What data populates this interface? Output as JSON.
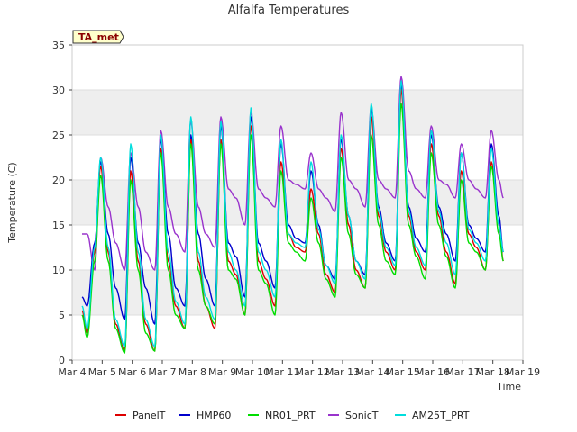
{
  "chart_data": {
    "type": "line",
    "title": "Alfalfa Temperatures",
    "xlabel": "Time",
    "ylabel": "Temperature (C)",
    "badge": "TA_met",
    "x_unit": "day of March",
    "xlim": [
      4,
      19
    ],
    "ylim": [
      0,
      35
    ],
    "x_ticks": [
      4,
      5,
      6,
      7,
      8,
      9,
      10,
      11,
      12,
      13,
      14,
      15,
      16,
      17,
      18,
      19
    ],
    "x_tick_labels": [
      "Mar 4",
      "Mar 5",
      "Mar 6",
      "Mar 7",
      "Mar 8",
      "Mar 9",
      "Mar 10",
      "Mar 11",
      "Mar 12",
      "Mar 13",
      "Mar 14",
      "Mar 15",
      "Mar 16",
      "Mar 17",
      "Mar 18",
      "Mar 19"
    ],
    "y_ticks": [
      0,
      5,
      10,
      15,
      20,
      25,
      30,
      35
    ],
    "grid": true,
    "legend_position": "bottom",
    "colors": {
      "PanelT": "#dd0000",
      "HMP60": "#0000cc",
      "NR01_PRT": "#00dd00",
      "SonicT": "#9933cc",
      "AM25T_PRT": "#00dddd",
      "badge_bg": "#ffffcc",
      "band": "#eeeeee"
    },
    "series": [
      {
        "name": "PanelT",
        "color": "#dd0000",
        "x": [
          4.33,
          4.5,
          4.75,
          4.95,
          5.2,
          5.45,
          5.75,
          5.95,
          6.2,
          6.45,
          6.75,
          6.95,
          7.2,
          7.45,
          7.75,
          7.95,
          8.2,
          8.45,
          8.75,
          8.95,
          9.2,
          9.45,
          9.75,
          9.95,
          10.2,
          10.45,
          10.75,
          10.95,
          11.2,
          11.45,
          11.75,
          11.95,
          12.2,
          12.45,
          12.75,
          12.95,
          13.2,
          13.45,
          13.75,
          13.95,
          14.2,
          14.45,
          14.75,
          14.95,
          15.2,
          15.45,
          15.75,
          15.95,
          16.2,
          16.45,
          16.75,
          16.95,
          17.2,
          17.45,
          17.75,
          17.95,
          18.2,
          18.35
        ],
        "y": [
          5.5,
          3,
          12,
          21.5,
          12,
          4,
          1,
          21,
          11,
          4,
          1,
          23.5,
          11,
          6,
          3.5,
          24.5,
          11,
          6,
          3.5,
          24.5,
          11,
          9.5,
          5,
          26,
          11,
          9,
          6,
          22,
          14,
          12.5,
          12,
          19,
          14,
          9.5,
          7.5,
          23.5,
          15,
          10,
          8,
          27,
          16,
          12,
          10,
          30,
          16,
          12,
          10,
          24,
          16,
          12,
          8.5,
          21,
          14,
          12.5,
          10,
          22,
          15,
          11
        ]
      },
      {
        "name": "HMP60",
        "color": "#0000cc",
        "x": [
          4.33,
          4.5,
          4.75,
          4.95,
          5.2,
          5.45,
          5.75,
          5.95,
          6.2,
          6.45,
          6.75,
          6.95,
          7.2,
          7.45,
          7.75,
          7.95,
          8.2,
          8.45,
          8.75,
          8.95,
          9.2,
          9.45,
          9.75,
          9.95,
          10.2,
          10.45,
          10.75,
          10.95,
          11.2,
          11.45,
          11.75,
          11.95,
          12.2,
          12.45,
          12.75,
          12.95,
          13.2,
          13.45,
          13.75,
          13.95,
          14.2,
          14.45,
          14.75,
          14.95,
          15.2,
          15.45,
          15.75,
          15.95,
          16.2,
          16.45,
          16.75,
          16.95,
          17.2,
          17.45,
          17.75,
          17.95,
          18.2,
          18.35
        ],
        "y": [
          7,
          6,
          13,
          22,
          14,
          8,
          4.5,
          22.5,
          13,
          8,
          4,
          24.5,
          14,
          8,
          6,
          25,
          14,
          9,
          6,
          26,
          13,
          11.5,
          7,
          27,
          13,
          11,
          8,
          24,
          15,
          13.5,
          13,
          21,
          15,
          10.5,
          9,
          24.5,
          16,
          11,
          9.5,
          28,
          17,
          13,
          11,
          30.5,
          17,
          13.5,
          12,
          25,
          17,
          14,
          11,
          23,
          15,
          13.5,
          12,
          24,
          16,
          12
        ]
      },
      {
        "name": "NR01_PRT",
        "color": "#00dd00",
        "x": [
          4.33,
          4.5,
          4.75,
          4.95,
          5.2,
          5.45,
          5.75,
          5.95,
          6.2,
          6.45,
          6.75,
          6.95,
          7.2,
          7.45,
          7.75,
          7.95,
          8.2,
          8.45,
          8.75,
          8.95,
          9.2,
          9.45,
          9.75,
          9.95,
          10.2,
          10.45,
          10.75,
          10.95,
          11.2,
          11.45,
          11.75,
          11.95,
          12.2,
          12.45,
          12.75,
          12.95,
          13.2,
          13.45,
          13.75,
          13.95,
          14.2,
          14.45,
          14.75,
          14.95,
          15.2,
          15.45,
          15.75,
          15.95,
          16.2,
          16.45,
          16.75,
          16.95,
          17.2,
          17.45,
          17.75,
          17.95,
          18.2,
          18.35
        ],
        "y": [
          5,
          2.5,
          11,
          20.5,
          11,
          3.5,
          0.8,
          20,
          10,
          3,
          1,
          23,
          10,
          5,
          3.5,
          24,
          10,
          6,
          4,
          24,
          10,
          9,
          5,
          25,
          10,
          8.5,
          5,
          21,
          13,
          12,
          11,
          18,
          13,
          9,
          7,
          22.5,
          14,
          9.5,
          8,
          25,
          15,
          11,
          9.5,
          28.5,
          15,
          11.5,
          9,
          23,
          15,
          11.5,
          8,
          20,
          13,
          12,
          10,
          21.5,
          14,
          11
        ]
      },
      {
        "name": "SonicT",
        "color": "#9933cc",
        "x": [
          4.33,
          4.5,
          4.75,
          4.95,
          5.2,
          5.45,
          5.75,
          5.95,
          6.2,
          6.45,
          6.75,
          6.95,
          7.2,
          7.45,
          7.75,
          7.95,
          8.2,
          8.45,
          8.75,
          8.95,
          9.2,
          9.45,
          9.75,
          9.95,
          10.2,
          10.45,
          10.75,
          10.95,
          11.2,
          11.45,
          11.75,
          11.95,
          12.2,
          12.45,
          12.75,
          12.95,
          13.2,
          13.45,
          13.75,
          13.95,
          14.2,
          14.45,
          14.75,
          14.95,
          15.2,
          15.45,
          15.75,
          15.95,
          16.2,
          16.45,
          16.75,
          16.95,
          17.2,
          17.45,
          17.75,
          17.95,
          18.2,
          18.35
        ],
        "y": [
          14,
          14,
          10,
          22.5,
          17,
          13,
          10,
          23,
          17,
          12,
          10,
          25.5,
          17,
          14,
          12,
          26.5,
          17,
          14,
          12.5,
          27,
          19,
          18,
          15,
          27.5,
          19,
          18,
          17,
          26,
          20,
          19.5,
          19,
          23,
          19,
          18,
          16.5,
          27.5,
          20,
          19,
          17,
          28,
          20,
          19,
          18,
          31.5,
          21,
          19,
          18,
          26,
          20,
          19.5,
          18,
          24,
          20,
          19,
          18,
          25.5,
          20,
          18
        ]
      },
      {
        "name": "AM25T_PRT",
        "color": "#00dddd",
        "x": [
          4.33,
          4.5,
          4.75,
          4.95,
          5.2,
          5.45,
          5.75,
          5.95,
          6.2,
          6.45,
          6.75,
          6.95,
          7.2,
          7.45,
          7.75,
          7.95,
          8.2,
          8.45,
          8.75,
          8.95,
          9.2,
          9.45,
          9.75,
          9.95,
          10.2,
          10.45,
          10.75,
          10.95,
          11.2,
          11.45,
          11.75,
          11.95,
          12.2,
          12.45,
          12.75,
          12.95,
          13.2,
          13.45,
          13.75,
          13.95,
          14.2,
          14.45,
          14.75,
          14.95,
          15.2,
          15.45,
          15.75,
          15.95,
          16.2,
          16.45,
          16.75,
          16.95,
          17.2,
          17.45,
          17.75,
          17.95,
          18.2,
          18.35
        ],
        "y": [
          6,
          3.5,
          12.5,
          22.5,
          12.5,
          4.5,
          1.5,
          24,
          12,
          4.5,
          1.5,
          25,
          12,
          6.5,
          4,
          27,
          12,
          7,
          4.5,
          26.5,
          12,
          10,
          6,
          28,
          12,
          10,
          7,
          24.5,
          14,
          13,
          12.5,
          22,
          14.5,
          10.5,
          8.5,
          25,
          16,
          11,
          9,
          28.5,
          16.5,
          12.5,
          10.5,
          31,
          16.5,
          12.5,
          10.5,
          25.5,
          16.5,
          13,
          9.5,
          23,
          14.5,
          13,
          11,
          23.5,
          15,
          12
        ]
      }
    ]
  }
}
